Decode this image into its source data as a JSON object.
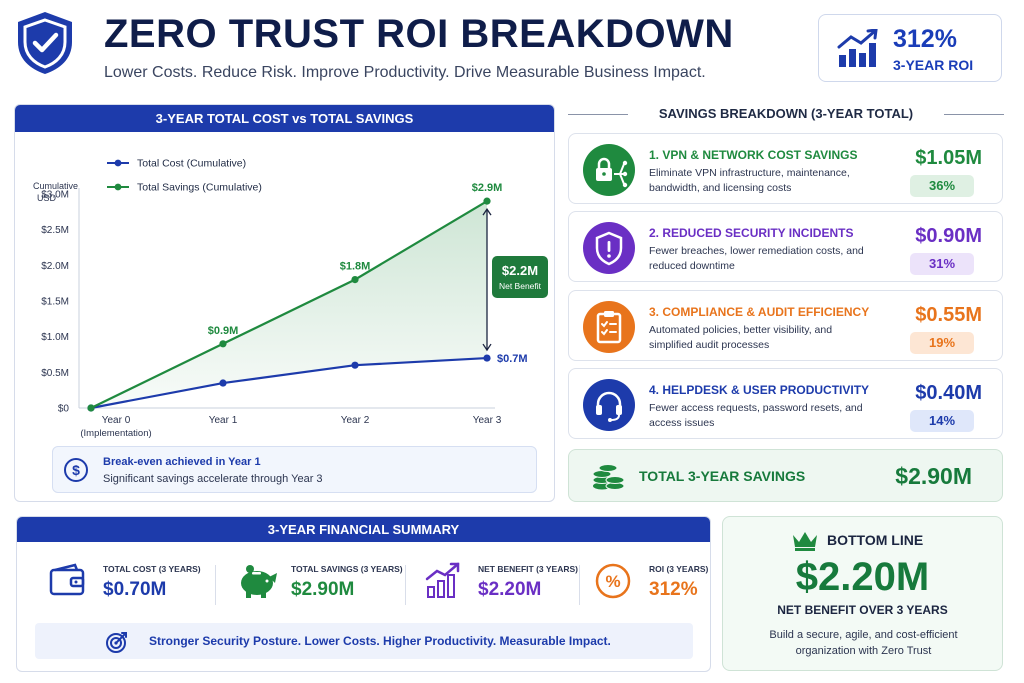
{
  "header": {
    "title": "ZERO TRUST ROI BREAKDOWN",
    "subtitle": "Lower Costs. Reduce Risk. Improve Productivity. Drive Measurable Business Impact.",
    "roi_value": "312%",
    "roi_label": "3-YEAR ROI"
  },
  "chart_panel": {
    "title": "3-YEAR TOTAL COST vs TOTAL SAVINGS",
    "net_benefit_value": "$2.2M",
    "net_benefit_label": "Net Benefit",
    "break_even_title": "Break-even achieved in Year 1",
    "break_even_text": "Significant savings accelerate through Year 3"
  },
  "chart_data": {
    "type": "line",
    "title": "",
    "ylabel": "Cumulative USD",
    "xlabel": "",
    "categories": [
      "Year 0",
      "Year 1",
      "Year 2",
      "Year 3"
    ],
    "category_sublabels": [
      "(Implementation)",
      "",
      "",
      ""
    ],
    "ylim": [
      0,
      3.0
    ],
    "yticks": [
      0,
      0.5,
      1.0,
      1.5,
      2.0,
      2.5,
      3.0
    ],
    "ytick_labels": [
      "$0",
      "$0.5M",
      "$1.0M",
      "$1.5M",
      "$2.0M",
      "$2.5M",
      "$3.0M"
    ],
    "legend_position": "top-left",
    "grid": false,
    "series": [
      {
        "name": "Total Cost (Cumulative)",
        "color": "#1d3bab",
        "values": [
          0,
          0.35,
          0.6,
          0.7
        ],
        "labels": [
          "",
          "",
          "",
          "$0.7M"
        ]
      },
      {
        "name": "Total Savings (Cumulative)",
        "color": "#1f8a3f",
        "values": [
          0,
          0.9,
          1.8,
          2.9
        ],
        "labels": [
          "",
          "$0.9M",
          "$1.8M",
          "$2.9M"
        ]
      }
    ]
  },
  "savings": {
    "title": "SAVINGS BREAKDOWN (3-YEAR TOTAL)",
    "items": [
      {
        "title": "1. VPN & NETWORK COST SAVINGS",
        "desc": "Eliminate VPN infrastructure, maintenance, bandwidth, and licensing costs",
        "amount": "$1.05M",
        "pct": "36%",
        "color": "#1f8a3f",
        "pct_bg": "#dff0e3",
        "icon": "network-lock-icon"
      },
      {
        "title": "2. REDUCED SECURITY INCIDENTS",
        "desc": "Fewer breaches, lower remediation costs, and reduced downtime",
        "amount": "$0.90M",
        "pct": "31%",
        "color": "#6a2fc4",
        "pct_bg": "#ece3fa",
        "icon": "shield-alert-icon"
      },
      {
        "title": "3. COMPLIANCE & AUDIT EFFICIENCY",
        "desc": "Automated policies, better visibility, and simplified audit processes",
        "amount": "$0.55M",
        "pct": "19%",
        "color": "#e8741c",
        "pct_bg": "#fde6d4",
        "icon": "clipboard-check-icon"
      },
      {
        "title": "4. HELPDESK & USER PRODUCTIVITY",
        "desc": "Fewer access requests, password resets, and access issues",
        "amount": "$0.40M",
        "pct": "14%",
        "color": "#1d3bab",
        "pct_bg": "#dfe7fa",
        "icon": "headset-icon"
      }
    ],
    "total_label": "TOTAL 3-YEAR SAVINGS",
    "total_amount": "$2.90M"
  },
  "summary": {
    "title": "3-YEAR FINANCIAL SUMMARY",
    "items": [
      {
        "label": "TOTAL COST (3 YEARS)",
        "value": "$0.70M",
        "color": "#1d3bab",
        "icon": "wallet-icon"
      },
      {
        "label": "TOTAL SAVINGS (3 YEARS)",
        "value": "$2.90M",
        "color": "#1f8a3f",
        "icon": "piggy-bank-icon"
      },
      {
        "label": "NET BENEFIT (3 YEARS)",
        "value": "$2.20M",
        "color": "#6a2fc4",
        "icon": "bar-growth-icon"
      },
      {
        "label": "ROI (3 YEARS)",
        "value": "312%",
        "color": "#e8741c",
        "icon": "percent-icon"
      }
    ],
    "strip_text": "Stronger Security Posture. Lower Costs. Higher Productivity. Measurable Impact."
  },
  "bottom_line": {
    "title": "BOTTOM LINE",
    "amount": "$2.20M",
    "subtitle": "NET BENEFIT OVER 3 YEARS",
    "desc": "Build a secure, agile, and cost-efficient organization with Zero Trust"
  }
}
